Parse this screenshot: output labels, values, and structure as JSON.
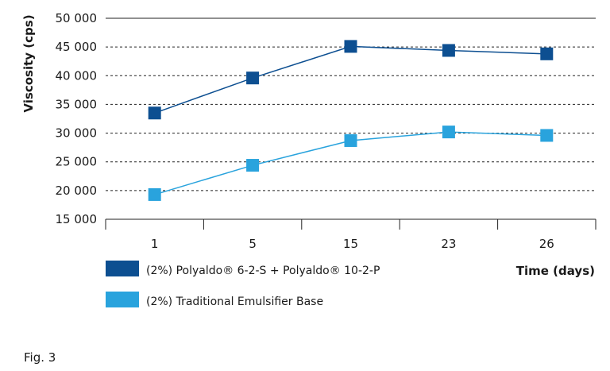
{
  "chart_data": {
    "type": "line",
    "categories": [
      "1",
      "5",
      "15",
      "23",
      "26"
    ],
    "series": [
      {
        "name": "(2%) Polyaldo® 6-2-S + Polyaldo® 10-2-P",
        "values": [
          33500,
          39600,
          45100,
          44400,
          43800
        ],
        "color": "#0d4f91"
      },
      {
        "name": "(2%) Traditional Emulsifier Base",
        "values": [
          19300,
          24400,
          28700,
          30200,
          29600
        ],
        "color": "#29a3dd"
      }
    ],
    "ylabel": "Viscosity (cps)",
    "xlabel": "Time (days)",
    "ylim": [
      15000,
      50000
    ],
    "yticks": [
      "50 000",
      "45 000",
      "40 000",
      "35 000",
      "30 000",
      "25 000",
      "20 000",
      "15 000"
    ],
    "ytick_values": [
      50000,
      45000,
      40000,
      35000,
      30000,
      25000,
      20000,
      15000
    ],
    "grid": "horizontal dashed",
    "legend_position": "bottom-left"
  },
  "caption": "Fig. 3"
}
